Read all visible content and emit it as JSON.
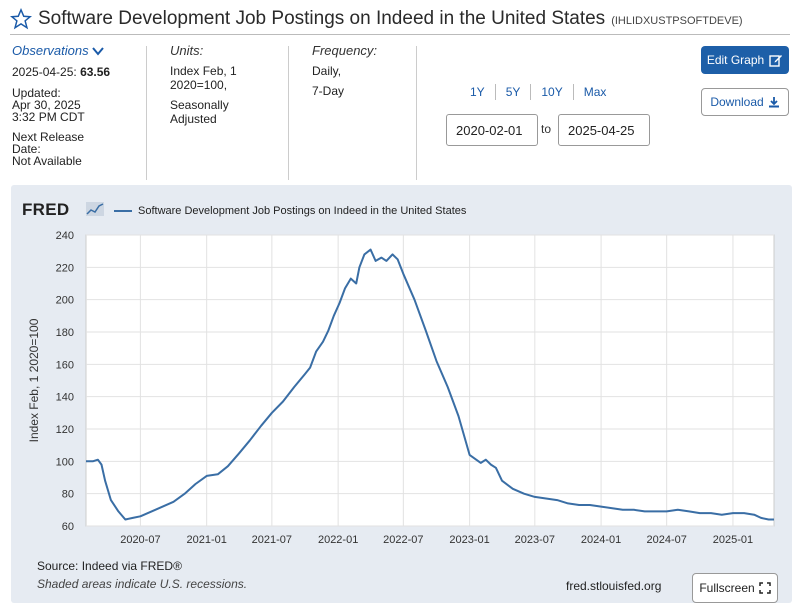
{
  "header": {
    "title": "Software Development Job Postings on Indeed in the United States",
    "series_id": "(IHLIDXUSTPSOFTDEVE)"
  },
  "observations": {
    "link_label": "Observations",
    "date": "2025-04-25:",
    "value": "63.56",
    "updated_label": "Updated:",
    "updated_date": "Apr 30, 2025",
    "updated_time": "3:32 PM CDT",
    "next_release_label_1": "Next Release",
    "next_release_label_2": "Date:",
    "next_release_value": "Not Available"
  },
  "units": {
    "label": "Units:",
    "line1": "Index Feb, 1",
    "line2": "2020=100,",
    "line3": "Seasonally",
    "line4": "Adjusted"
  },
  "frequency": {
    "label": "Frequency:",
    "line1": "Daily,",
    "line2": "7-Day"
  },
  "range": {
    "buttons": [
      "1Y",
      "5Y",
      "10Y",
      "Max"
    ],
    "start": "2020-02-01",
    "to": "to",
    "end": "2025-04-25"
  },
  "actions": {
    "edit_graph": "Edit Graph",
    "download": "Download",
    "fullscreen": "Fullscreen"
  },
  "footer": {
    "source": "Source: Indeed via FRED®",
    "shaded": "Shaded areas indicate U.S. recessions.",
    "url": "fred.stlouisfed.org"
  },
  "colors": {
    "line": "#3a6ea5",
    "frame": "#e6ebf2",
    "accent": "#1d5fa8"
  },
  "chart_data": {
    "type": "line",
    "brand": "FRED",
    "legend": "Software Development Job Postings on Indeed in the United States",
    "ylabel": "Index Feb, 1 2020=100",
    "ylim": [
      60,
      240
    ],
    "yticks": [
      60,
      80,
      100,
      120,
      140,
      160,
      180,
      200,
      220,
      240
    ],
    "xlim": [
      "2020-02-01",
      "2025-04-25"
    ],
    "xticks": [
      "2020-07",
      "2021-01",
      "2021-07",
      "2022-01",
      "2022-07",
      "2023-01",
      "2023-07",
      "2024-01",
      "2024-07",
      "2025-01"
    ],
    "grid": true,
    "series": [
      {
        "name": "Software Development Job Postings on Indeed in the United States",
        "x": [
          "2020-02-01",
          "2020-02-20",
          "2020-03-05",
          "2020-03-15",
          "2020-03-25",
          "2020-04-10",
          "2020-05-01",
          "2020-05-20",
          "2020-06-10",
          "2020-07-01",
          "2020-08-01",
          "2020-09-01",
          "2020-10-01",
          "2020-11-01",
          "2020-12-01",
          "2021-01-01",
          "2021-02-01",
          "2021-03-01",
          "2021-04-01",
          "2021-05-01",
          "2021-06-01",
          "2021-07-01",
          "2021-08-01",
          "2021-09-01",
          "2021-10-01",
          "2021-10-15",
          "2021-11-01",
          "2021-11-20",
          "2021-12-05",
          "2021-12-20",
          "2022-01-05",
          "2022-01-20",
          "2022-02-05",
          "2022-02-20",
          "2022-03-01",
          "2022-03-15",
          "2022-04-01",
          "2022-04-15",
          "2022-05-01",
          "2022-05-15",
          "2022-06-01",
          "2022-06-15",
          "2022-07-01",
          "2022-08-01",
          "2022-09-01",
          "2022-10-01",
          "2022-11-01",
          "2022-12-01",
          "2023-01-01",
          "2023-02-01",
          "2023-02-15",
          "2023-03-01",
          "2023-03-15",
          "2023-04-01",
          "2023-05-01",
          "2023-06-01",
          "2023-07-01",
          "2023-08-01",
          "2023-09-01",
          "2023-10-01",
          "2023-11-01",
          "2023-12-01",
          "2024-01-01",
          "2024-02-01",
          "2024-03-01",
          "2024-04-01",
          "2024-05-01",
          "2024-06-01",
          "2024-07-01",
          "2024-08-01",
          "2024-09-01",
          "2024-10-01",
          "2024-11-01",
          "2024-12-01",
          "2025-01-01",
          "2025-02-01",
          "2025-03-01",
          "2025-03-20",
          "2025-04-10",
          "2025-04-25"
        ],
        "y": [
          100,
          100,
          101,
          98,
          88,
          76,
          69,
          64,
          65,
          66,
          69,
          72,
          75,
          80,
          86,
          91,
          92,
          97,
          105,
          113,
          122,
          130,
          137,
          146,
          154,
          158,
          168,
          174,
          181,
          190,
          198,
          207,
          213,
          210,
          220,
          228,
          231,
          224,
          226,
          224,
          228,
          225,
          216,
          200,
          181,
          162,
          146,
          128,
          104,
          99,
          101,
          98,
          96,
          88,
          83,
          80,
          78,
          77,
          76,
          74,
          73,
          73,
          72,
          71,
          70,
          70,
          69,
          69,
          69,
          70,
          69,
          68,
          68,
          67,
          68,
          68,
          67,
          65,
          64,
          64
        ]
      }
    ]
  }
}
